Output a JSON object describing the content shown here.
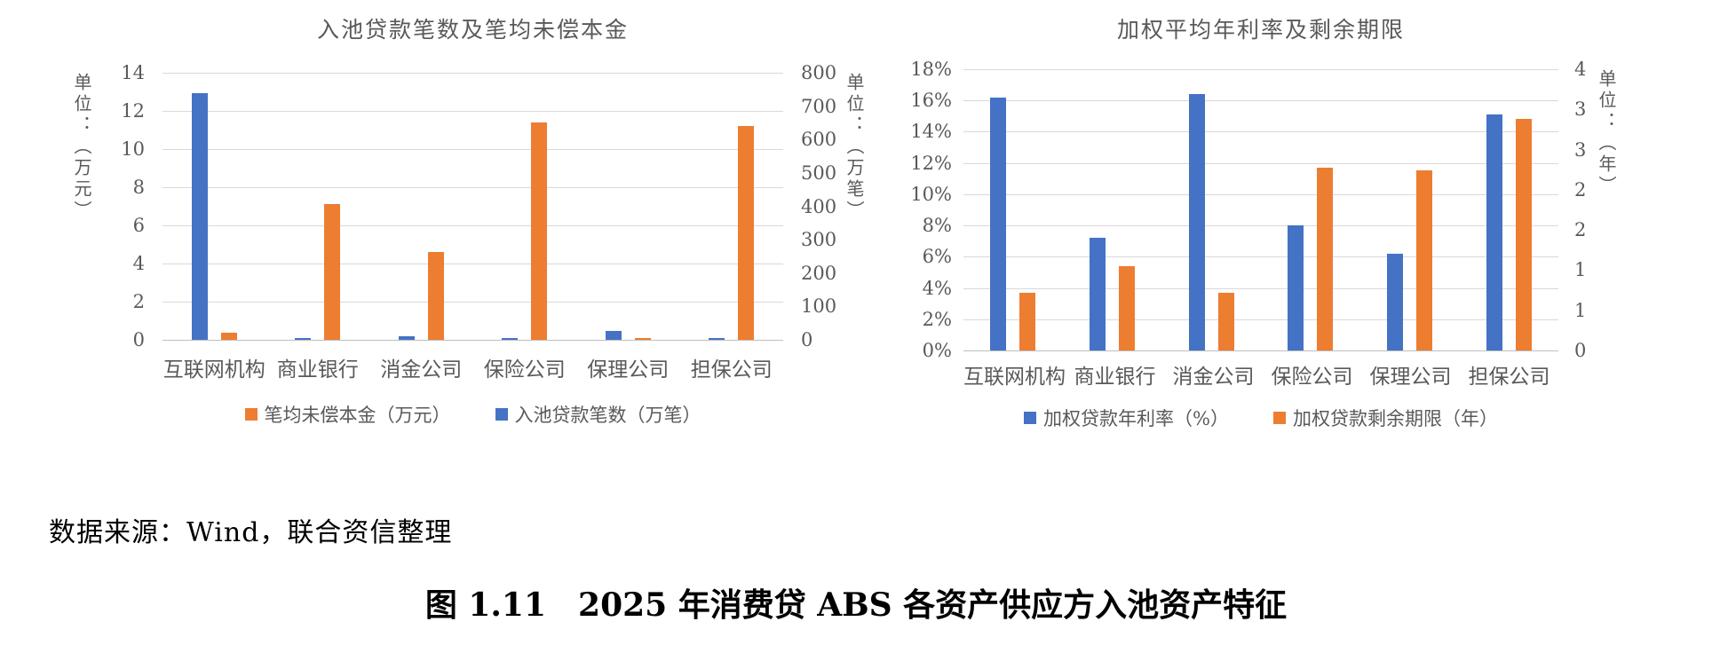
{
  "colors": {
    "series_blue": "#4472C4",
    "series_orange": "#ED7D31",
    "gridline": "#D9D9D9",
    "axis_line": "#BFBFBF",
    "chart_text": "#595959",
    "body_text": "#000000"
  },
  "chart_data": [
    {
      "type": "bar",
      "title": "入池贷款笔数及笔均未偿本金",
      "categories": [
        "互联网机构",
        "商业银行",
        "消金公司",
        "保险公司",
        "保理公司",
        "担保公司"
      ],
      "series": [
        {
          "name": "入池贷款笔数（万笔）",
          "color": "#4472C4",
          "axis": "right",
          "values": [
            740,
            3,
            11,
            3,
            26,
            3
          ]
        },
        {
          "name": "笔均未偿本金（万元）",
          "color": "#ED7D31",
          "axis": "left",
          "values": [
            0.35,
            7.1,
            4.6,
            11.4,
            0.1,
            11.2
          ]
        }
      ],
      "axis_left": {
        "unit_label": "单位：（万元）",
        "max": 14,
        "min": 0,
        "ticks": [
          "14",
          "12",
          "10",
          "8",
          "6",
          "4",
          "2",
          "0"
        ]
      },
      "axis_right": {
        "unit_label": "单位：（万笔）",
        "max": 800,
        "min": 0,
        "ticks": [
          "800",
          "700",
          "600",
          "500",
          "400",
          "300",
          "200",
          "100",
          "0"
        ]
      },
      "legend_order": [
        1,
        0
      ],
      "grid": "horizontal",
      "legend_position": "bottom"
    },
    {
      "type": "bar",
      "title": "加权平均年利率及剩余期限",
      "categories": [
        "互联网机构",
        "商业银行",
        "消金公司",
        "保险公司",
        "保理公司",
        "担保公司"
      ],
      "series": [
        {
          "name": "加权贷款年利率（%）",
          "color": "#4472C4",
          "axis": "left",
          "values": [
            16.2,
            7.2,
            16.4,
            8.0,
            6.2,
            15.1
          ]
        },
        {
          "name": "加权贷款剩余期限（年）",
          "color": "#ED7D31",
          "axis": "right",
          "values": [
            0.72,
            1.05,
            0.72,
            2.27,
            2.24,
            2.88
          ]
        }
      ],
      "axis_left": {
        "unit_label": "",
        "max": 18,
        "min": 0,
        "ticks": [
          "18%",
          "16%",
          "14%",
          "12%",
          "10%",
          "8%",
          "6%",
          "4%",
          "2%",
          "0%"
        ]
      },
      "axis_right": {
        "unit_label": "单位：（年）",
        "max": 3.5,
        "min": 0,
        "ticks": [
          "4",
          "3",
          "3",
          "2",
          "2",
          "1",
          "1",
          "0"
        ]
      },
      "legend_order": [
        0,
        1
      ],
      "grid": "horizontal",
      "legend_position": "bottom"
    }
  ],
  "source_note": "数据来源：Wind，联合资信整理",
  "caption": "图 1.11　2025 年消费贷 ABS 各资产供应方入池资产特征"
}
